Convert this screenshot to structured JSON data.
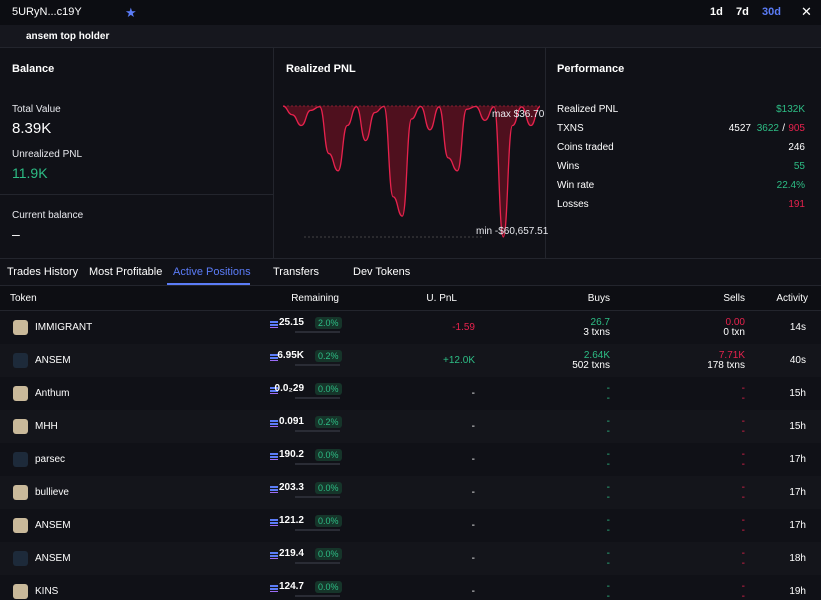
{
  "topbar": {
    "wallet": "5URyN...c19Y",
    "ranges": [
      "1d",
      "7d",
      "30d"
    ]
  },
  "subbar": {
    "label": "ansem top holder"
  },
  "balance": {
    "title": "Balance",
    "total_label": "Total Value",
    "total": "8.39K",
    "unrealized_label": "Unrealized PNL",
    "unrealized": "11.9K",
    "current_label": "Current balance",
    "current": "–"
  },
  "pnl_chart": {
    "title": "Realized PNL",
    "max_label": "max $36.70",
    "min_label": "min -$60,657.51",
    "ylim": [
      -60657.51,
      36.7
    ],
    "values": [
      0,
      -4000,
      -9000,
      -2000,
      -300,
      -22000,
      -30000,
      -9000,
      -300,
      -16000,
      -3000,
      -200,
      -42000,
      -51000,
      -6000,
      -200,
      -11000,
      -400,
      -24000,
      -30000,
      -1500,
      -200,
      -6600,
      -300,
      -60657.51,
      -9000,
      -400,
      -9000,
      -300
    ]
  },
  "performance": {
    "title": "Performance",
    "rows": [
      {
        "label": "Realized PNL",
        "value": "$132K"
      },
      {
        "label": "TXNS",
        "total": "4527",
        "buys": "3622",
        "sep": "/",
        "sells": "905"
      },
      {
        "label": "Coins traded",
        "value": "246"
      },
      {
        "label": "Wins",
        "value": "55"
      },
      {
        "label": "Win rate",
        "value": "22.4%"
      },
      {
        "label": "Losses",
        "value": "191"
      }
    ]
  },
  "tabs": [
    "Trades History",
    "Most Profitable",
    "Active Positions",
    "Transfers",
    "Dev Tokens"
  ],
  "table": {
    "headers": [
      "Token",
      "Remaining",
      "U. PnL",
      "Buys",
      "Sells",
      "Activity"
    ],
    "rows": [
      [
        "IMMIGRANT",
        "25.15",
        "2.0%",
        "-1.59",
        "26.7",
        "3 txns",
        "0.00",
        "0 txn",
        "14s"
      ],
      [
        "ANSEM",
        "6.95K",
        "0.2%",
        "+12.0K",
        "2.64K",
        "502 txns",
        "7.71K",
        "178 txns",
        "40s"
      ],
      [
        "Anthum",
        "0.0₂29",
        "0.0%",
        "-",
        "-",
        "-",
        "-",
        "-",
        "15h"
      ],
      [
        "MHH",
        "0.091",
        "0.2%",
        "-",
        "-",
        "-",
        "-",
        "-",
        "15h"
      ],
      [
        "parsec",
        "190.2",
        "0.0%",
        "-",
        "-",
        "-",
        "-",
        "-",
        "17h"
      ],
      [
        "bullieve",
        "203.3",
        "0.0%",
        "-",
        "-",
        "-",
        "-",
        "-",
        "17h"
      ],
      [
        "ANSEM",
        "121.2",
        "0.0%",
        "-",
        "-",
        "-",
        "-",
        "-",
        "17h"
      ],
      [
        "ANSEM",
        "219.4",
        "0.0%",
        "-",
        "-",
        "-",
        "-",
        "-",
        "18h"
      ],
      [
        "KINS",
        "124.7",
        "0.0%",
        "-",
        "-",
        "-",
        "-",
        "-",
        "19h"
      ]
    ]
  }
}
